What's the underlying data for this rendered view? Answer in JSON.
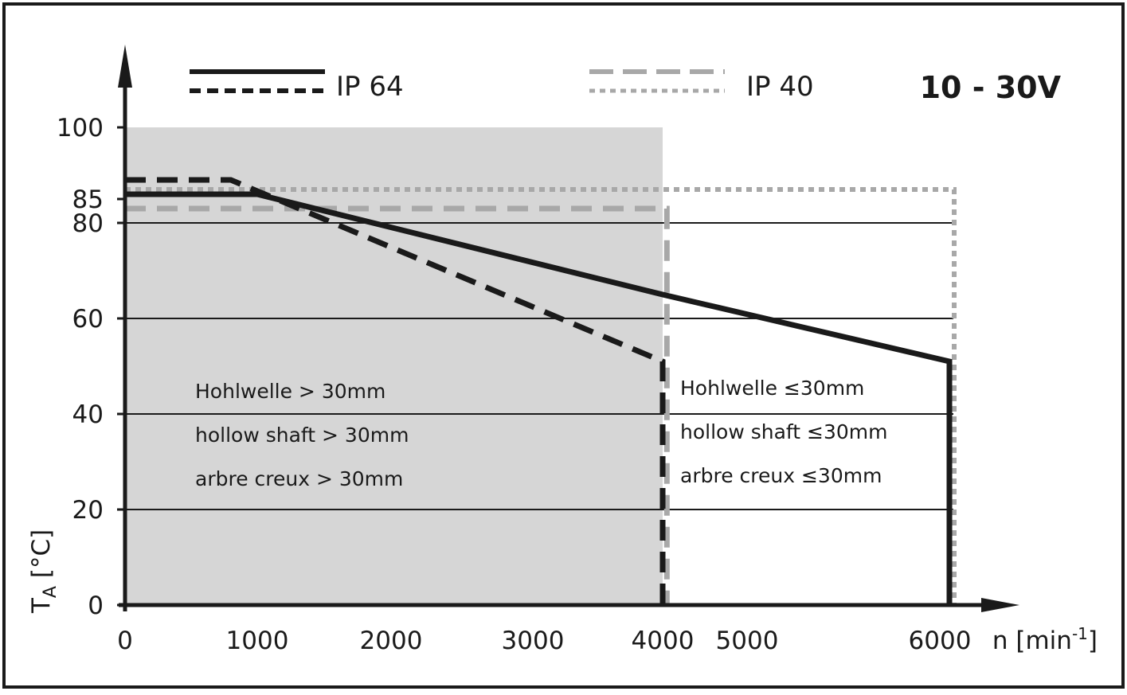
{
  "chart_data": {
    "type": "line",
    "title": "10 - 30V",
    "xlabel": "n [min",
    "xlabel_sup": "-1",
    "xlabel_close": "]",
    "ylabel": "T",
    "ylabel_sub": "A",
    "ylabel_unit": " [°C]",
    "xlim": [
      0,
      7000
    ],
    "ylim": [
      0,
      100
    ],
    "x_ticks": [
      {
        "value": 0,
        "label": "0"
      },
      {
        "value": 1000,
        "label": "1000"
      },
      {
        "value": 2000,
        "label": "2000"
      },
      {
        "value": 3000,
        "label": "3000"
      },
      {
        "value": 4000,
        "label": "4000"
      },
      {
        "value": 5000,
        "label": "5000"
      },
      {
        "value": 6000,
        "label": "6000"
      }
    ],
    "y_ticks": [
      {
        "value": 0,
        "label": "0"
      },
      {
        "value": 20,
        "label": "20"
      },
      {
        "value": 40,
        "label": "40"
      },
      {
        "value": 60,
        "label": "60"
      },
      {
        "value": 80,
        "label": "80"
      },
      {
        "value": 85,
        "label": "85"
      },
      {
        "value": 100,
        "label": "100"
      }
    ],
    "gridlines_y": [
      20,
      40,
      60,
      80
    ],
    "shaded_region": {
      "x": [
        0,
        4000
      ],
      "y": [
        0,
        100
      ],
      "color": "#d6d6d6"
    },
    "legend": [
      {
        "label": "IP 64",
        "styles": [
          "solid",
          "dashed"
        ],
        "color": "#1a1a1a"
      },
      {
        "label": "IP 40",
        "styles": [
          "dashed",
          "dotted"
        ],
        "color": "#a8a8a8"
      }
    ],
    "series": [
      {
        "group": "IP 64",
        "style": "solid",
        "color": "#1a1a1a",
        "points": [
          [
            0,
            86
          ],
          [
            1000,
            86
          ],
          [
            4000,
            65
          ],
          [
            6200,
            51
          ],
          [
            6200,
            0
          ]
        ]
      },
      {
        "group": "IP 64",
        "style": "dashed",
        "color": "#1a1a1a",
        "points": [
          [
            0,
            89
          ],
          [
            800,
            89
          ],
          [
            4000,
            51
          ],
          [
            4000,
            0
          ]
        ]
      },
      {
        "group": "IP 40",
        "style": "dashed",
        "color": "#a8a8a8",
        "points": [
          [
            0,
            83
          ],
          [
            4050,
            83
          ],
          [
            4050,
            0
          ]
        ]
      },
      {
        "group": "IP 40",
        "style": "dotted",
        "color": "#a8a8a8",
        "points": [
          [
            0,
            87
          ],
          [
            6300,
            87
          ],
          [
            6300,
            0
          ]
        ]
      }
    ],
    "annotations": {
      "left": [
        "Hohlwelle > 30mm",
        "hollow shaft > 30mm",
        "arbre creux > 30mm"
      ],
      "right": [
        "Hohlwelle ≤30mm",
        "hollow shaft ≤30mm",
        "arbre creux ≤30mm"
      ]
    }
  }
}
